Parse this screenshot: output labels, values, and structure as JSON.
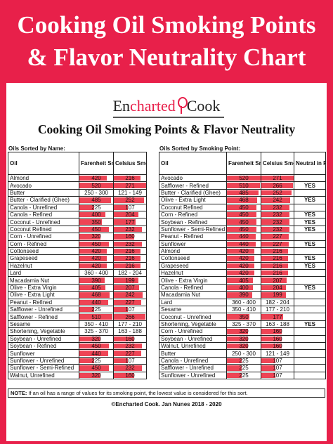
{
  "banner": {
    "line1": "Cooking Oil Smoking Points",
    "line2": "& Flavor Neutrality Chart"
  },
  "logo": {
    "part1": "En",
    "part2": "charted",
    "part3": "Cook"
  },
  "subtitle": "Cooking Oil Smoking Points & Flavor Neutrality",
  "left": {
    "caption": "Oils Sorted by Name:",
    "headers": {
      "oil": "Oil",
      "f": "Farenheit Smoking Point",
      "c": "Celsius Smoking Point"
    },
    "rows": [
      [
        "Almond",
        "420",
        "216",
        0.82
      ],
      [
        "Avocado",
        "520",
        "271",
        1.0
      ],
      [
        "Butter",
        "250 - 300",
        "121 - 149",
        0
      ],
      [
        "Butter - Clarified (Ghee)",
        "485",
        "252",
        0.93
      ],
      [
        "Canola - Unrefined",
        "225",
        "107",
        0.43
      ],
      [
        "Canola - Refined",
        "400",
        "204",
        0.77
      ],
      [
        "Coconut - Unrefined",
        "350",
        "177",
        0.67
      ],
      [
        "Coconut  Refined",
        "450",
        "232",
        0.87
      ],
      [
        "Corn - Unrefined",
        "320",
        "160",
        0.62
      ],
      [
        "Corn - Refined",
        "450",
        "232",
        0.87
      ],
      [
        "Cottonseed",
        "420",
        "216",
        0.82
      ],
      [
        "Grapeseed",
        "420",
        "216",
        0.82
      ],
      [
        "Hazelnut",
        "420",
        "216",
        0.82
      ],
      [
        "Lard",
        "360 - 400",
        "182 - 204",
        0
      ],
      [
        "Macadamia Nut",
        "390",
        "199",
        0.75
      ],
      [
        "Olive - Extra Virgin",
        "405",
        "207",
        0.78
      ],
      [
        "Olive - Extra Light",
        "468",
        "242",
        0.9
      ],
      [
        "Peanut - Refined",
        "440",
        "227",
        0.85
      ],
      [
        "Safflower - Unrefined",
        "225",
        "107",
        0.43
      ],
      [
        "Safflower - Refined",
        "510",
        "266",
        0.98
      ],
      [
        "Sesame",
        "350 - 410",
        "177 - 210",
        0
      ],
      [
        "Shortening, Vegetable",
        "325 - 370",
        "163 - 188",
        0
      ],
      [
        "Soybean - Unrefined",
        "320",
        "160",
        0.62
      ],
      [
        "Soybean - Refined",
        "450",
        "232",
        0.87
      ],
      [
        "Sunflower",
        "440",
        "227",
        0.85
      ],
      [
        "Sunflower - Unrefined",
        "225",
        "107",
        0.43
      ],
      [
        "Sunflower - Semi-Refined",
        "450",
        "232",
        0.87
      ],
      [
        "Walnut, Unrefined",
        "320",
        "160",
        0.62
      ]
    ]
  },
  "right": {
    "caption": "Oils Sorted by Smoking Point:",
    "headers": {
      "oil": "Oil",
      "f": "Farenheit Smoking Point",
      "c": "Celsius Smoking Point",
      "n": "Neutral in Flavor?"
    },
    "rows": [
      [
        "Avocado",
        "520",
        "271",
        "",
        1.0
      ],
      [
        "Safflower - Refined",
        "510",
        "266",
        "YES",
        0.98
      ],
      [
        "Butter - Clarified (Ghee)",
        "485",
        "252",
        "",
        0.93
      ],
      [
        "Olive - Extra Light",
        "468",
        "242",
        "YES",
        0.9
      ],
      [
        "Coconut  Refined",
        "450",
        "232",
        "",
        0.87
      ],
      [
        "Corn - Refined",
        "450",
        "232",
        "YES",
        0.87
      ],
      [
        "Soybean - Refined",
        "450",
        "232",
        "YES",
        0.87
      ],
      [
        "Sunflower - Semi-Refined",
        "450",
        "232",
        "YES",
        0.87
      ],
      [
        "Peanut - Refined",
        "440",
        "227",
        "",
        0.85
      ],
      [
        "Sunflower",
        "440",
        "227",
        "YES",
        0.85
      ],
      [
        "Almond",
        "420",
        "216",
        "",
        0.82
      ],
      [
        "Cottonseed",
        "420",
        "216",
        "YES",
        0.82
      ],
      [
        "Grapeseed",
        "420",
        "216",
        "YES",
        0.82
      ],
      [
        "Hazelnut",
        "420",
        "216",
        "",
        0.82
      ],
      [
        "Olive - Extra Virgin",
        "405",
        "207",
        "",
        0.78
      ],
      [
        "Canola - Refined",
        "400",
        "204",
        "YES",
        0.77
      ],
      [
        "Macadamia Nut",
        "390",
        "199",
        "",
        0.75
      ],
      [
        "Lard",
        "360 - 400",
        "182 - 204",
        "",
        0
      ],
      [
        "Sesame",
        "350 - 410",
        "177 - 210",
        "",
        0
      ],
      [
        "Coconut - Unrefined",
        "350",
        "177",
        "",
        0.67
      ],
      [
        "Shortening, Vegetable",
        "325 - 370",
        "163 - 188",
        "YES",
        0
      ],
      [
        "Corn - Unrefined",
        "320",
        "160",
        "",
        0.62
      ],
      [
        "Soybean - Unrefined",
        "320",
        "160",
        "",
        0.62
      ],
      [
        "Walnut, Unrefined",
        "320",
        "160",
        "",
        0.62
      ],
      [
        "Butter",
        "250 - 300",
        "121 - 149",
        "",
        0
      ],
      [
        "Canola - Unrefined",
        "225",
        "107",
        "",
        0.43
      ],
      [
        "Safflower - Unrefined",
        "225",
        "107",
        "",
        0.43
      ],
      [
        "Sunflower - Unrefined",
        "225",
        "107",
        "",
        0.43
      ]
    ]
  },
  "note": {
    "label": "NOTE:",
    "text": " If an oil has a range of values for its smoking point, the lowest value is considered for this sort."
  },
  "footer": "©Encharted Cook.  Jan Nunes 2018 - 2020",
  "colors": {
    "accent": "#e8204a",
    "bar": "#ee4455"
  }
}
